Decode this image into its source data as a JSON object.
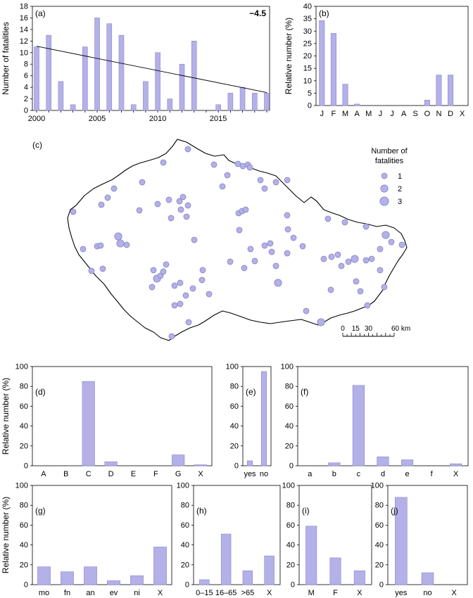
{
  "colors": {
    "bar_fill": "#b4b0e8",
    "bar_stroke": "#8c88cc",
    "dot_fill": "#b4b0e8",
    "dot_stroke": "#7f7bc0",
    "line": "#000000"
  },
  "chart_data": [
    {
      "panel_label": "(a)",
      "type": "bar",
      "ylabel": "Number of fatalities",
      "trend_label": "−4.5",
      "x": [
        2000,
        2001,
        2002,
        2003,
        2004,
        2005,
        2006,
        2007,
        2008,
        2009,
        2010,
        2011,
        2012,
        2013,
        2014,
        2015,
        2016,
        2017,
        2018,
        2019
      ],
      "values": [
        11,
        13,
        5,
        1,
        11,
        16,
        15,
        13,
        1,
        5,
        10,
        2,
        8,
        12,
        0,
        1,
        3,
        4,
        3,
        3
      ],
      "x_tick_labels": [
        "2000",
        "2005",
        "2010",
        "2015"
      ],
      "y_ticks": [
        0,
        2,
        4,
        6,
        8,
        10,
        12,
        14,
        16,
        18
      ],
      "ylim": [
        0,
        18
      ],
      "trend": {
        "start": [
          2000,
          11.1
        ],
        "end": [
          2019,
          3.1
        ]
      },
      "grid": false
    },
    {
      "panel_label": "(b)",
      "type": "bar",
      "ylabel": "Relative number (%)",
      "categories": [
        "J",
        "F",
        "M",
        "A",
        "M",
        "J",
        "J",
        "A",
        "S",
        "O",
        "N",
        "D",
        "X"
      ],
      "values": [
        34.3,
        29.1,
        8.6,
        0.6,
        0,
        0,
        0,
        0,
        0,
        2.2,
        12.3,
        12.3,
        0
      ],
      "y_ticks": [
        0,
        5,
        10,
        15,
        20,
        25,
        30,
        35,
        40
      ],
      "ylim": [
        0,
        40
      ]
    },
    {
      "panel_label": "(c)",
      "type": "map",
      "legend_title_lines": [
        "Number of",
        "fatalities"
      ],
      "legend_entries": [
        "1",
        "2",
        "3"
      ],
      "scale_labels": [
        "0",
        "15",
        "30",
        "60 km"
      ]
    },
    {
      "panel_label": "(d)",
      "type": "bar",
      "ylabel": "Relative number (%)",
      "categories": [
        "A",
        "B",
        "C",
        "D",
        "E",
        "F",
        "G",
        "X"
      ],
      "values": [
        0,
        0,
        85,
        4,
        0,
        0,
        11,
        1
      ],
      "y_ticks": [
        0,
        20,
        40,
        60,
        80,
        100
      ],
      "ylim": [
        0,
        100
      ]
    },
    {
      "panel_label": "(e)",
      "type": "bar",
      "categories": [
        "yes",
        "no"
      ],
      "values": [
        5,
        95
      ],
      "y_ticks": [
        0,
        20,
        40,
        60,
        80,
        100
      ],
      "ylim": [
        0,
        100
      ]
    },
    {
      "panel_label": "(f)",
      "type": "bar",
      "categories": [
        "a",
        "b",
        "c",
        "d",
        "e",
        "f",
        "X"
      ],
      "values": [
        0,
        3,
        81,
        9,
        6,
        0,
        2
      ],
      "y_ticks": [
        0,
        20,
        40,
        60,
        80,
        100
      ],
      "ylim": [
        0,
        100
      ]
    },
    {
      "panel_label": "(g)",
      "type": "bar",
      "ylabel": "Relative number (%)",
      "categories": [
        "mo",
        "fn",
        "an",
        "ev",
        "ni",
        "X"
      ],
      "values": [
        18,
        13,
        18,
        4,
        9,
        38
      ],
      "y_ticks": [
        0,
        20,
        40,
        60,
        80,
        100
      ],
      "ylim": [
        0,
        100
      ]
    },
    {
      "panel_label": "(h)",
      "type": "bar",
      "categories": [
        "0–15",
        "16–65",
        ">65",
        "X"
      ],
      "values": [
        5,
        51,
        14,
        29
      ],
      "y_ticks": [
        0,
        20,
        40,
        60,
        80,
        100
      ],
      "ylim": [
        0,
        100
      ]
    },
    {
      "panel_label": "(i)",
      "type": "bar",
      "categories": [
        "M",
        "F",
        "X"
      ],
      "values": [
        59,
        27,
        14
      ],
      "y_ticks": [
        0,
        20,
        40,
        60,
        80,
        100
      ],
      "ylim": [
        0,
        100
      ]
    },
    {
      "panel_label": "(j)",
      "type": "bar",
      "categories": [
        "yes",
        "no",
        "X"
      ],
      "values": [
        88,
        12,
        0
      ],
      "y_ticks": [
        0,
        20,
        40,
        60,
        80,
        100
      ],
      "ylim": [
        0,
        100
      ]
    }
  ]
}
